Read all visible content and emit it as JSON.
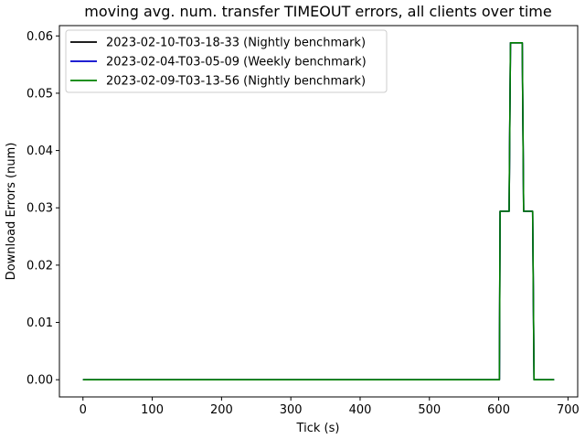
{
  "chart_data": {
    "type": "line",
    "title": "moving avg. num. transfer TIMEOUT errors, all clients over time",
    "xlabel": "Tick (s)",
    "ylabel": "Download Errors (num)",
    "xlim": [
      -34,
      714
    ],
    "ylim": [
      -0.003,
      0.0618
    ],
    "xticks": [
      0,
      100,
      200,
      300,
      400,
      500,
      600,
      700
    ],
    "xtick_labels": [
      "0",
      "100",
      "200",
      "300",
      "400",
      "500",
      "600",
      "700"
    ],
    "yticks": [
      0.0,
      0.01,
      0.02,
      0.03,
      0.04,
      0.05,
      0.06
    ],
    "ytick_labels": [
      "0.00",
      "0.01",
      "0.02",
      "0.03",
      "0.04",
      "0.05",
      "0.06"
    ],
    "grid": false,
    "legend_position": "top-left",
    "series": [
      {
        "name": "2023-02-10-T03-18-33 (Nightly benchmark)",
        "color": "#000000",
        "x": [
          0,
          600,
          601,
          602,
          615,
          617,
          634,
          636,
          649,
          651,
          680
        ],
        "y": [
          0,
          0,
          0,
          0.0294,
          0.0294,
          0.0588,
          0.0588,
          0.0294,
          0.0294,
          0,
          0
        ]
      },
      {
        "name": "2023-02-04-T03-05-09 (Weekly benchmark)",
        "color": "#0000cc",
        "x": [
          0,
          600,
          601,
          602,
          615,
          617,
          634,
          636,
          649,
          651,
          680
        ],
        "y": [
          0,
          0,
          0,
          0.0294,
          0.0294,
          0.0588,
          0.0588,
          0.0294,
          0.0294,
          0,
          0
        ]
      },
      {
        "name": "2023-02-09-T03-13-56 (Nightly benchmark)",
        "color": "#008000",
        "x": [
          0,
          600,
          601,
          602,
          615,
          617,
          634,
          636,
          649,
          651,
          680
        ],
        "y": [
          0,
          0,
          0,
          0.0294,
          0.0294,
          0.0588,
          0.0588,
          0.0294,
          0.0294,
          0,
          0
        ]
      }
    ]
  }
}
